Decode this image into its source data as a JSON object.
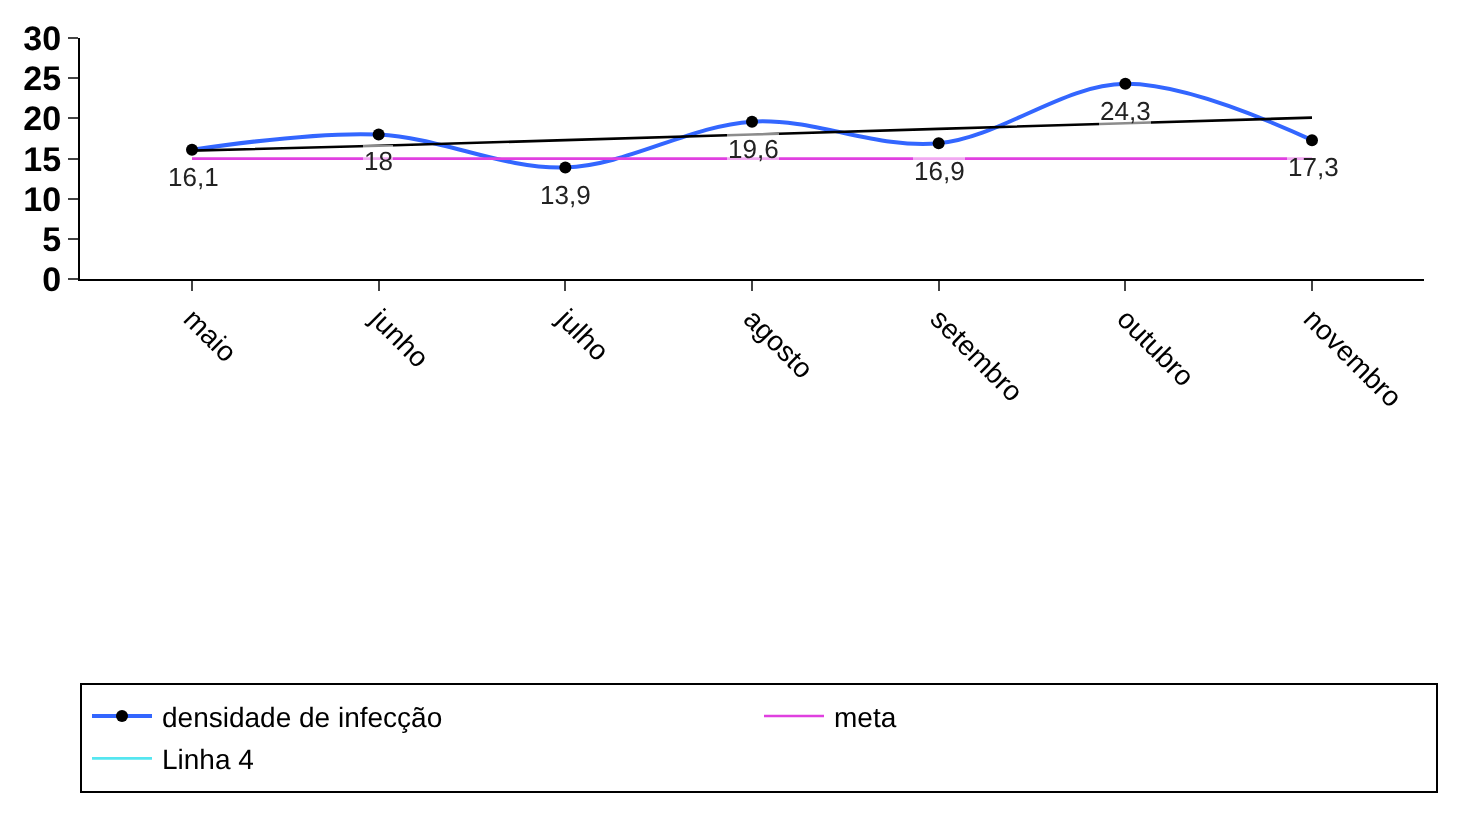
{
  "chart_data": {
    "type": "line",
    "categories": [
      "maio",
      "junho",
      "julho",
      "agosto",
      "setembro",
      "outubro",
      "novembro"
    ],
    "series": [
      {
        "name": "densidade de infecção",
        "color": "#3366ff",
        "values": [
          16.1,
          18,
          13.9,
          19.6,
          16.9,
          24.3,
          17.3
        ],
        "value_labels": [
          "16,1",
          "18",
          "13,9",
          "19,6",
          "16,9",
          "24,3",
          "17,3"
        ],
        "marker": "circle"
      },
      {
        "name": "meta",
        "color": "#e040e0",
        "values": [
          15,
          15,
          15,
          15,
          15,
          15,
          15
        ],
        "marker": "none"
      },
      {
        "name": "Linha 4",
        "color": "#55e6f0",
        "values": [
          null,
          null,
          null,
          null,
          null,
          null,
          null
        ],
        "marker": "none"
      },
      {
        "color": "#000000",
        "values": [
          16.0,
          16.6,
          17.3,
          18.0,
          18.7,
          19.4,
          20.1
        ],
        "marker": "none"
      }
    ],
    "ylim": [
      0,
      30
    ],
    "yticks": [
      0,
      5,
      10,
      15,
      20,
      25,
      30
    ],
    "legend": "bottom",
    "line_style": "solid"
  }
}
